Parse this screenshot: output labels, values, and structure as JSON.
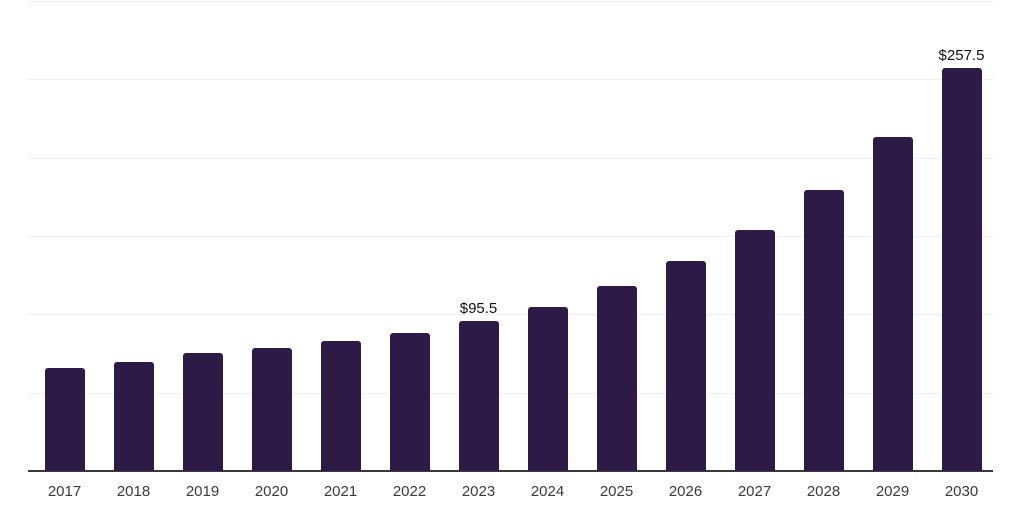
{
  "chart_data": {
    "type": "bar",
    "title": "",
    "xlabel": "",
    "ylabel": "",
    "legend": "none",
    "categories": [
      "2017",
      "2018",
      "2019",
      "2020",
      "2021",
      "2022",
      "2023",
      "2024",
      "2025",
      "2026",
      "2027",
      "2028",
      "2029",
      "2030"
    ],
    "values": [
      65.8,
      69.7,
      75.3,
      78.5,
      83.0,
      88.0,
      95.5,
      104.5,
      118.0,
      134.0,
      154.0,
      179.5,
      213.5,
      257.5
    ],
    "value_labels": [
      {
        "category_index": 6,
        "text": "$95.5"
      },
      {
        "category_index": 13,
        "text": "$257.5"
      }
    ],
    "ylim": [
      0,
      300
    ],
    "grid_step": 50,
    "grid_on": true,
    "y_tick_labels_visible": false,
    "bar_color": "#2E1A47",
    "axis_color": "#3a3a3a",
    "gridline_color": "#efefef",
    "tick_label_color": "#3a3a3a",
    "value_label_color": "#111111"
  }
}
